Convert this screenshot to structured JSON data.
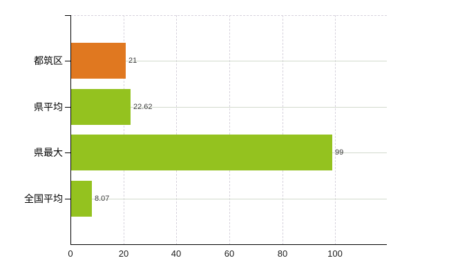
{
  "chart_data": {
    "type": "bar",
    "orientation": "horizontal",
    "title": "",
    "xlabel": "",
    "ylabel": "",
    "categories": [
      "都筑区",
      "県平均",
      "県最大",
      "全国平均"
    ],
    "values": [
      21,
      22.62,
      99,
      8.07
    ],
    "value_labels": [
      "21",
      "22.62",
      "99",
      "8.07"
    ],
    "bar_colors": [
      "#e07820",
      "#94c21f",
      "#94c21f",
      "#94c21f"
    ],
    "xtick_labels": [
      "0",
      "20",
      "40",
      "60",
      "80",
      "100"
    ],
    "xtick_values": [
      0,
      20,
      40,
      60,
      80,
      100
    ],
    "xlim": [
      0,
      119.5
    ],
    "grid": true,
    "legend": false
  },
  "colors": {
    "highlight_bar": "#e07820",
    "normal_bar": "#94c21f",
    "axis": "#000000",
    "grid_vertical_dashed": "#d6d2dc",
    "grid_horizontal_solid": "#d2dacd",
    "value_label_text": "#3a3a3a",
    "tick_label_text": "#1a1a1a",
    "background": "#ffffff"
  }
}
